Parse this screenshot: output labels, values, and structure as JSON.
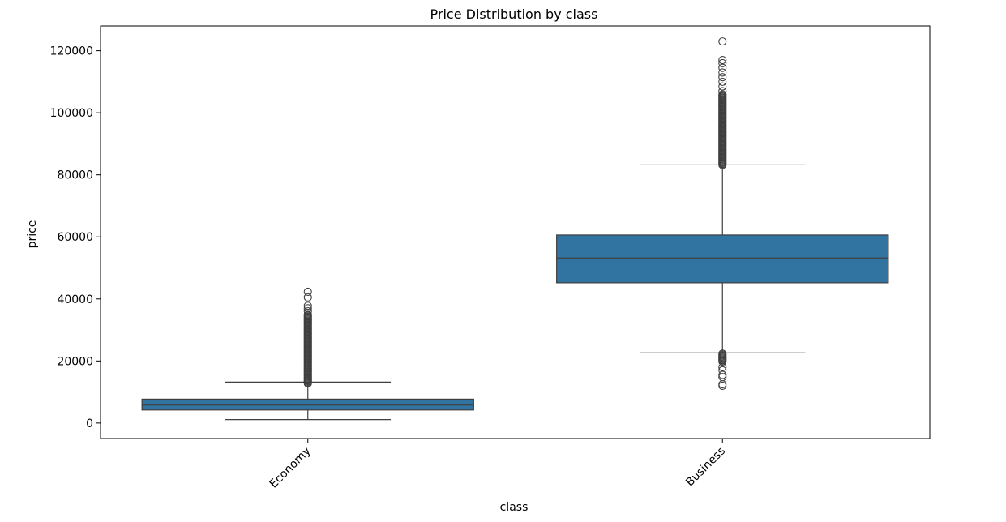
{
  "chart_data": {
    "type": "boxplot",
    "title": "Price Distribution by class",
    "xlabel": "class",
    "ylabel": "price",
    "ylim": [
      -5000,
      128000
    ],
    "yticks": [
      0,
      20000,
      40000,
      60000,
      80000,
      100000,
      120000
    ],
    "ytick_labels": [
      "0",
      "20000",
      "40000",
      "60000",
      "80000",
      "100000",
      "120000"
    ],
    "xtick_rotation_deg": 45,
    "grid": false,
    "box_color": "#3274a1",
    "line_color": "#3f3f3f",
    "categories": [
      "Economy",
      "Business"
    ],
    "boxes": [
      {
        "category": "Economy",
        "q1": 4200,
        "median": 5800,
        "q3": 7700,
        "whisker_low": 1100,
        "whisker_high": 13200,
        "outliers_dense_range": [
          12800,
          35000
        ],
        "outliers_sparse": [
          36000,
          37000,
          37800,
          40500,
          42300
        ]
      },
      {
        "category": "Business",
        "q1": 45200,
        "median": 53200,
        "q3": 60600,
        "whisker_low": 22600,
        "whisker_high": 83200,
        "outliers_dense_range": [
          83200,
          106000
        ],
        "outliers_sparse": [
          107000,
          108500,
          110000,
          111500,
          113000,
          114500,
          116000,
          117000,
          123000
        ],
        "outliers_low_dense_range": [
          19800,
          22500
        ],
        "outliers_low_sparse": [
          18000,
          17000,
          15500,
          14800,
          12500,
          12000
        ]
      }
    ]
  }
}
